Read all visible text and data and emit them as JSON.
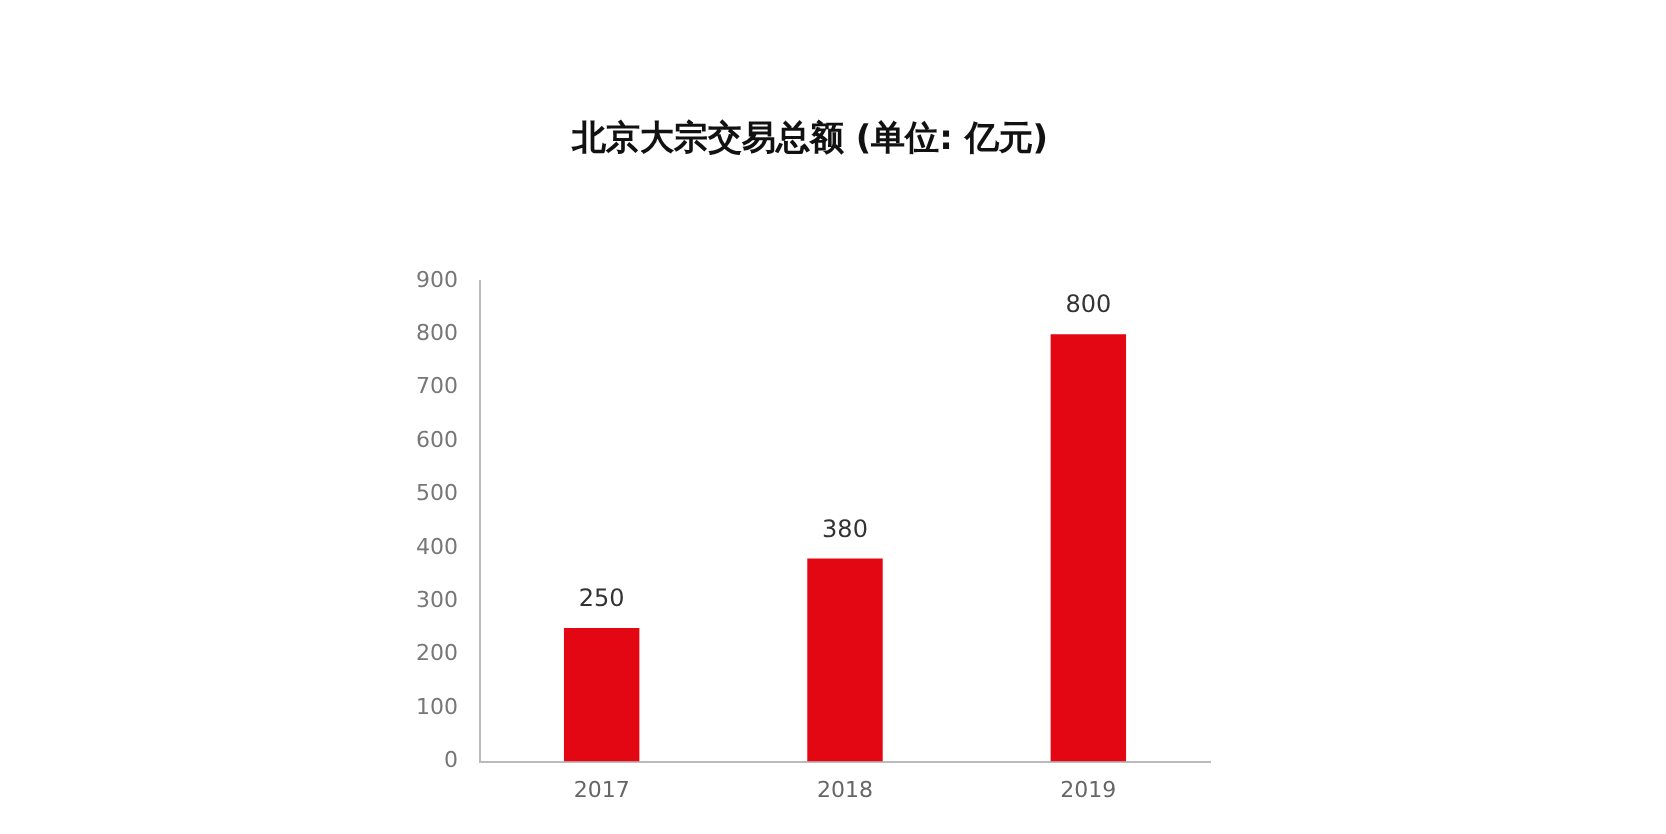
{
  "chart_data": {
    "type": "bar",
    "title": "北京大宗交易总额 (单位: 亿元)",
    "categories": [
      "2017",
      "2018",
      "2019"
    ],
    "values": [
      250,
      380,
      800
    ],
    "color": "#e30613",
    "ylim": [
      0,
      900
    ],
    "yticks": [
      0,
      100,
      200,
      300,
      400,
      500,
      600,
      700,
      800,
      900
    ],
    "grid": false,
    "data_labels": true
  }
}
